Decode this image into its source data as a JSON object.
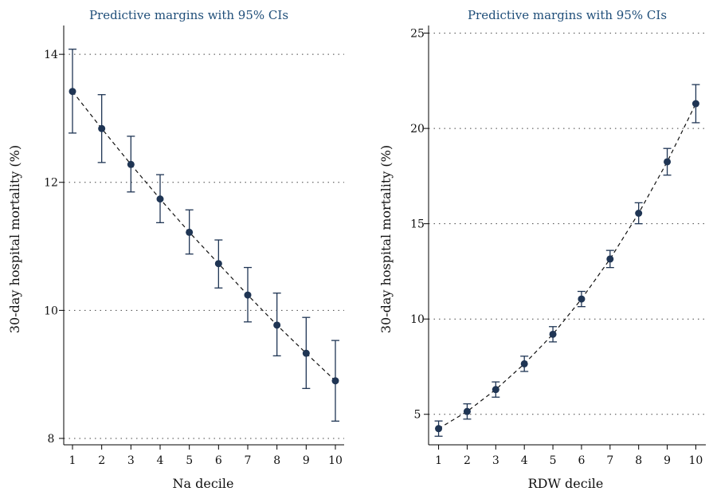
{
  "chart_data": [
    {
      "type": "scatter",
      "title": "Predictive margins with 95% CIs",
      "xlabel": "Na decile",
      "ylabel": "30-day hospital mortality (%)",
      "x": [
        1,
        2,
        3,
        4,
        5,
        6,
        7,
        8,
        9,
        10
      ],
      "xticks": [
        1,
        2,
        3,
        4,
        5,
        6,
        7,
        8,
        9,
        10
      ],
      "yticks": [
        8,
        10,
        12,
        14
      ],
      "ylim": [
        7.9,
        14.45
      ],
      "grid": "horizontal-dotted",
      "connect": "dashed",
      "series": [
        {
          "values": [
            13.42,
            12.84,
            12.28,
            11.74,
            11.22,
            10.73,
            10.24,
            9.77,
            9.33,
            8.9
          ],
          "ci_low": [
            12.77,
            12.31,
            11.85,
            11.37,
            10.88,
            10.35,
            9.82,
            9.29,
            8.78,
            8.27
          ],
          "ci_high": [
            14.08,
            13.37,
            12.72,
            12.12,
            11.57,
            11.1,
            10.67,
            10.27,
            9.89,
            9.53
          ]
        }
      ]
    },
    {
      "type": "scatter",
      "title": "Predictive margins with 95% CIs",
      "xlabel": "RDW decile",
      "ylabel": "30-day hospital mortality (%)",
      "x": [
        1,
        2,
        3,
        4,
        5,
        6,
        7,
        8,
        9,
        10
      ],
      "xticks": [
        1,
        2,
        3,
        4,
        5,
        6,
        7,
        8,
        9,
        10
      ],
      "yticks": [
        5,
        10,
        15,
        20,
        25
      ],
      "ylim": [
        3.4,
        25.4
      ],
      "grid": "horizontal-dotted",
      "connect": "dashed",
      "series": [
        {
          "values": [
            4.25,
            5.15,
            6.3,
            7.65,
            9.2,
            11.05,
            13.15,
            15.55,
            18.25,
            21.3
          ],
          "ci_low": [
            3.85,
            4.75,
            5.9,
            7.25,
            8.8,
            10.65,
            12.7,
            15.0,
            17.55,
            20.3
          ],
          "ci_high": [
            4.65,
            5.55,
            6.7,
            8.05,
            9.6,
            11.45,
            13.6,
            16.1,
            18.95,
            22.3
          ]
        }
      ]
    }
  ]
}
